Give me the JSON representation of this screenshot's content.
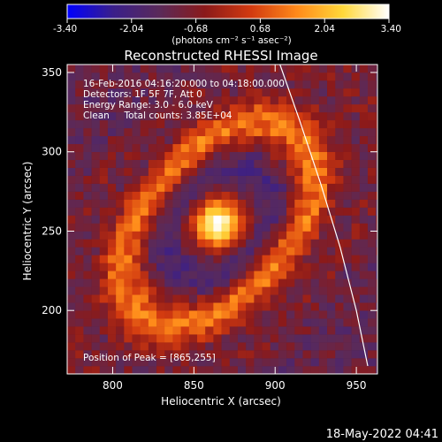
{
  "chart_data": {
    "type": "heatmap",
    "title": "Reconstructed RHESSI Image",
    "xlabel": "Heliocentric X (arcsec)",
    "ylabel": "Heliocentric Y (arcsec)",
    "xlim": [
      772,
      963
    ],
    "ylim": [
      160,
      355
    ],
    "xticks": [
      800,
      850,
      900,
      950
    ],
    "yticks": [
      200,
      250,
      300,
      350
    ],
    "colorbar": {
      "min": -3.4,
      "max": 3.4,
      "ticks": [
        "-3.40",
        "-2.04",
        "-0.68",
        "0.68",
        "2.04",
        "3.40"
      ],
      "unit_label": "(photons cm⁻² s⁻¹ asec⁻²)",
      "colormap": [
        "#0000ff",
        "#3a1f8a",
        "#5a2a5a",
        "#8b1a1a",
        "#d23a10",
        "#ff8a1a",
        "#ffd83a",
        "#ffffff"
      ]
    },
    "annotations": [
      "16-Feb-2016 04:16:20.000 to 04:18:00.000",
      "Detectors: 1F 5F 7F, Att 0",
      "Energy Range: 3.0 - 6.0 keV",
      "Clean     Total counts: 3.85E+04",
      "Position of Peak = [865,255]"
    ],
    "peak": {
      "x": 865,
      "y": 255,
      "value": 3.4
    },
    "limb_curve": {
      "x": [
        903,
        915,
        928,
        940,
        950,
        957
      ],
      "y": [
        355,
        320,
        280,
        240,
        200,
        165
      ]
    },
    "structure": {
      "center": [
        865,
        255
      ],
      "rings": [
        {
          "radius": 55,
          "value": 1.6
        },
        {
          "radius": 90,
          "value": -0.4
        }
      ]
    },
    "date_stamp": "18-May-2022 04:41"
  }
}
